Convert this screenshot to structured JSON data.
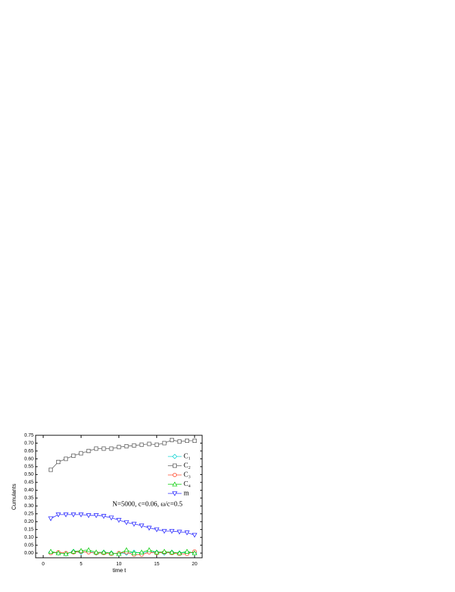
{
  "chart_data": {
    "type": "line",
    "xlabel": "time t",
    "ylabel": "Cumulants",
    "annotation": "N=5000, c=0.06, ω/c=0.5",
    "x": [
      1,
      2,
      3,
      4,
      5,
      6,
      7,
      8,
      9,
      10,
      11,
      12,
      13,
      14,
      15,
      16,
      17,
      18,
      19,
      20
    ],
    "xlim": [
      -1,
      21
    ],
    "xticks": [
      0,
      5,
      10,
      15,
      20
    ],
    "ylim": [
      -0.03,
      0.75
    ],
    "yticks": [
      {
        "value": 0,
        "label": "0.00"
      },
      {
        "value": 0.05,
        "label": "0.05"
      },
      {
        "value": 0.1,
        "label": "0.10"
      },
      {
        "value": 0.15,
        "label": "0.15"
      },
      {
        "value": 0.2,
        "label": "0.20"
      },
      {
        "value": 0.25,
        "label": "0.25"
      },
      {
        "value": 0.3,
        "label": "0.30"
      },
      {
        "value": 0.35,
        "label": "0.35"
      },
      {
        "value": 0.4,
        "label": "0.40"
      },
      {
        "value": 0.45,
        "label": "0.45"
      },
      {
        "value": 0.5,
        "label": "0.50"
      },
      {
        "value": 0.55,
        "label": "0.55"
      },
      {
        "value": 0.6,
        "label": "0.60"
      },
      {
        "value": 0.65,
        "label": "0.65"
      },
      {
        "value": 0.7,
        "label": "0.70"
      },
      {
        "value": 0.75,
        "label": "0.75"
      }
    ],
    "series": [
      {
        "name": "C₁",
        "color": "#00d0d0",
        "marker": "diamond",
        "values": [
          0.005,
          0.0,
          -0.005,
          0.01,
          0.005,
          0.01,
          0.0,
          0.005,
          0.0,
          -0.005,
          0.0,
          0.005,
          0.0,
          0.01,
          0.005,
          0.0,
          0.005,
          0.0,
          0.005,
          0.0
        ]
      },
      {
        "name": "C₂",
        "color": "#555555",
        "marker": "square",
        "values": [
          0.53,
          0.58,
          0.6,
          0.62,
          0.635,
          0.65,
          0.665,
          0.665,
          0.665,
          0.675,
          0.68,
          0.685,
          0.69,
          0.695,
          0.69,
          0.7,
          0.72,
          0.71,
          0.715,
          0.715
        ]
      },
      {
        "name": "C₃",
        "color": "#ff4020",
        "marker": "circle",
        "values": [
          0.0,
          0.005,
          0.0,
          0.005,
          0.01,
          0.005,
          0.0,
          0.0,
          -0.005,
          0.0,
          0.005,
          -0.01,
          -0.01,
          0.005,
          0.0,
          0.005,
          0.0,
          -0.005,
          -0.005,
          0.01
        ]
      },
      {
        "name": "C₄",
        "color": "#00cc00",
        "marker": "triangle-up",
        "values": [
          0.01,
          0.0,
          -0.005,
          0.01,
          0.015,
          0.02,
          0.005,
          0.005,
          0.0,
          -0.005,
          0.02,
          0.0,
          0.005,
          0.02,
          0.005,
          0.01,
          0.005,
          0.0,
          0.01,
          0.0
        ]
      },
      {
        "name": "m",
        "color": "#2020ff",
        "marker": "triangle-down",
        "values": [
          0.22,
          0.245,
          0.245,
          0.245,
          0.245,
          0.24,
          0.24,
          0.235,
          0.225,
          0.21,
          0.195,
          0.185,
          0.175,
          0.16,
          0.15,
          0.14,
          0.14,
          0.135,
          0.13,
          0.115
        ]
      }
    ]
  }
}
